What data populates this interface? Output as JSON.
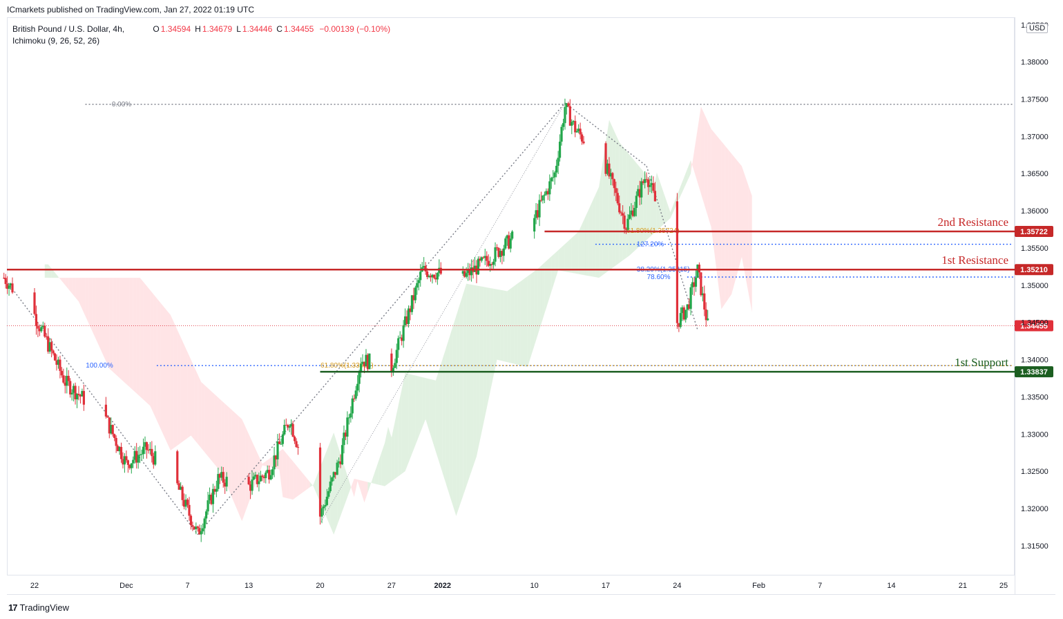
{
  "header": {
    "publisher": "ICmarkets published on TradingView.com, Jan 27, 2022 01:19 UTC",
    "symbol": "British Pound / U.S. Dollar, 4h,",
    "ohlc": [
      {
        "key": "O",
        "value": "1.34594"
      },
      {
        "key": "H",
        "value": "1.34679"
      },
      {
        "key": "L",
        "value": "1.34446"
      },
      {
        "key": "C",
        "value": "1.34455"
      },
      {
        "key": "",
        "value": "−0.00139 (−0.10%)"
      }
    ],
    "indicator": "Ichimoku (9, 26, 52, 26)",
    "currency": "USD",
    "brand": "TradingView"
  },
  "colors": {
    "up": "#22a64a",
    "down": "#e0303a",
    "resistance": "#c62828",
    "support": "#1b5e20",
    "fib_blue": "#2962ff",
    "fib_orange": "#d69a1b",
    "grey_dotted": "#787b86",
    "cloud_green": "#c8e6c9",
    "cloud_red": "#ffcdd2"
  },
  "chart_data": {
    "type": "candlestick",
    "title": "British Pound / U.S. Dollar, 4h",
    "ylim": [
      1.311,
      1.386
    ],
    "y_ticks": [
      "1.31500",
      "1.32000",
      "1.32500",
      "1.33000",
      "1.33500",
      "1.34000",
      "1.34500",
      "1.35000",
      "1.35500",
      "1.36000",
      "1.36500",
      "1.37000",
      "1.37500",
      "1.38000",
      "1.38500"
    ],
    "x_ticks": [
      "22",
      "Dec",
      "7",
      "13",
      "20",
      "27",
      "2022",
      "10",
      "17",
      "24",
      "Feb",
      "7",
      "14",
      "21",
      "25"
    ],
    "x_tick_dates": [
      "2021-11-22",
      "2021-12-01",
      "2021-12-07",
      "2021-12-13",
      "2021-12-20",
      "2021-12-27",
      "2022-01-01",
      "2022-01-10",
      "2022-01-17",
      "2022-01-24",
      "2022-02-01",
      "2022-02-07",
      "2022-02-14",
      "2022-02-21",
      "2022-02-25"
    ],
    "price_path": [
      {
        "date": "2021-11-19",
        "price": 1.351
      },
      {
        "date": "2021-11-22",
        "price": 1.346
      },
      {
        "date": "2021-11-25",
        "price": 1.337
      },
      {
        "date": "2021-11-29",
        "price": 1.332
      },
      {
        "date": "2021-12-01",
        "price": 1.326
      },
      {
        "date": "2021-12-03",
        "price": 1.328
      },
      {
        "date": "2021-12-06",
        "price": 1.323
      },
      {
        "date": "2021-12-08",
        "price": 1.3165
      },
      {
        "date": "2021-12-10",
        "price": 1.324
      },
      {
        "date": "2021-12-13",
        "price": 1.323
      },
      {
        "date": "2021-12-15",
        "price": 1.325
      },
      {
        "date": "2021-12-17",
        "price": 1.332
      },
      {
        "date": "2021-12-20",
        "price": 1.319
      },
      {
        "date": "2021-12-22",
        "price": 1.327
      },
      {
        "date": "2021-12-24",
        "price": 1.34
      },
      {
        "date": "2021-12-27",
        "price": 1.339
      },
      {
        "date": "2021-12-30",
        "price": 1.352
      },
      {
        "date": "2022-01-03",
        "price": 1.351
      },
      {
        "date": "2022-01-06",
        "price": 1.354
      },
      {
        "date": "2022-01-10",
        "price": 1.359
      },
      {
        "date": "2022-01-12",
        "price": 1.365
      },
      {
        "date": "2022-01-13",
        "price": 1.374
      },
      {
        "date": "2022-01-14",
        "price": 1.371
      },
      {
        "date": "2022-01-17",
        "price": 1.366
      },
      {
        "date": "2022-01-19",
        "price": 1.358
      },
      {
        "date": "2022-01-21",
        "price": 1.365
      },
      {
        "date": "2022-01-23",
        "price": 1.356
      },
      {
        "date": "2022-01-24",
        "price": 1.345
      },
      {
        "date": "2022-01-25",
        "price": 1.347
      },
      {
        "date": "2022-01-26",
        "price": 1.352
      },
      {
        "date": "2022-01-27",
        "price": 1.3446
      }
    ],
    "levels": [
      {
        "name": "2nd Resistance",
        "price": 1.35722,
        "label": "1.35722",
        "color": "#c62828"
      },
      {
        "name": "1st Resistance",
        "price": 1.3521,
        "label": "1.35210",
        "color": "#c62828"
      },
      {
        "name": "1st Support",
        "price": 1.33837,
        "label": "1.33837",
        "color": "#1b5e20"
      }
    ],
    "current_price": {
      "price": 1.34455,
      "label": "1.34455"
    },
    "fib_labels": [
      {
        "text": "0.00%",
        "price": 1.3743,
        "color": "#787b86"
      },
      {
        "text": "100.00%",
        "price": 1.3392,
        "color": "#2962ff"
      },
      {
        "text": "61.80%(1.33925)",
        "price": 1.3392,
        "color": "#d69a1b"
      },
      {
        "text": "61.80%(1.35724)",
        "price": 1.3573,
        "color": "#d69a1b"
      },
      {
        "text": "127.20%",
        "price": 1.3555,
        "color": "#2962ff"
      },
      {
        "text": "38.20%(1.35215)",
        "price": 1.3521,
        "color": "#2962ff"
      },
      {
        "text": "78.60%",
        "price": 1.3511,
        "color": "#2962ff"
      }
    ]
  }
}
